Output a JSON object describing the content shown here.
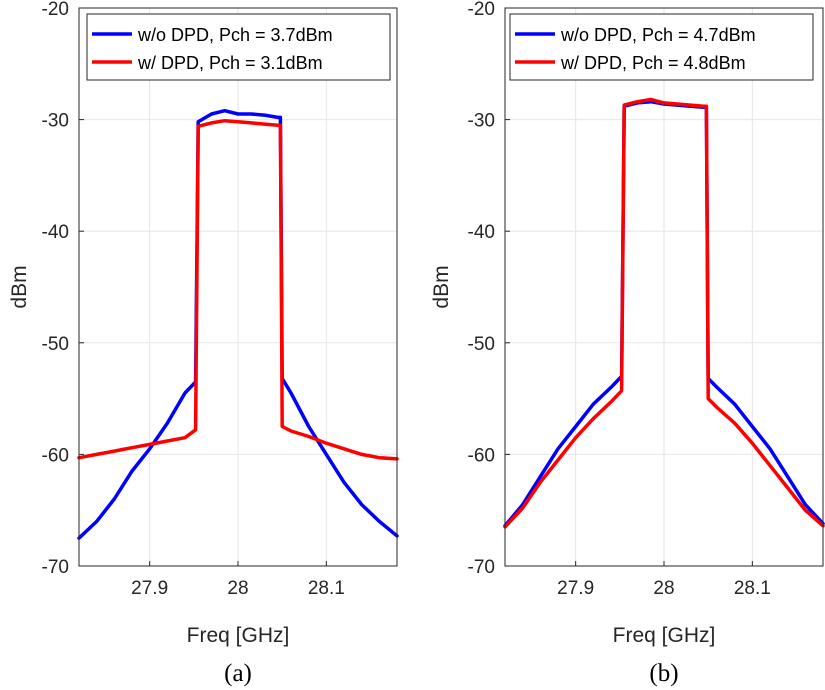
{
  "chart_data": [
    {
      "type": "line",
      "caption": "(a)",
      "xlabel": "Freq [GHz]",
      "ylabel": "dBm",
      "xlim": [
        27.82,
        28.18
      ],
      "ylim": [
        -70,
        -20
      ],
      "xticks": [
        27.9,
        28,
        28.1
      ],
      "xtick_labels": [
        "27.9",
        "28",
        "28.1"
      ],
      "yticks": [
        -70,
        -60,
        -50,
        -40,
        -30,
        -20
      ],
      "ytick_labels": [
        "-70",
        "-60",
        "-50",
        "-40",
        "-30",
        "-20"
      ],
      "grid": true,
      "legend_position": "top",
      "series": [
        {
          "name": "w/o DPD, Pch = 3.7dBm",
          "color": "#0000ff",
          "x": [
            27.82,
            27.84,
            27.86,
            27.88,
            27.9,
            27.92,
            27.94,
            27.952,
            27.955,
            27.97,
            27.985,
            28.0,
            28.015,
            28.03,
            28.045,
            28.048,
            28.05,
            28.06,
            28.08,
            28.1,
            28.12,
            28.14,
            28.16,
            28.18
          ],
          "y": [
            -67.5,
            -66,
            -64,
            -61.5,
            -59.5,
            -57.2,
            -54.5,
            -53.5,
            -30.2,
            -29.5,
            -29.2,
            -29.5,
            -29.5,
            -29.6,
            -29.8,
            -29.8,
            -53.2,
            -54.5,
            -57.5,
            -60,
            -62.5,
            -64.5,
            -66,
            -67.3
          ]
        },
        {
          "name": "w/ DPD, Pch = 3.1dBm",
          "color": "#ff0000",
          "x": [
            27.82,
            27.84,
            27.86,
            27.88,
            27.9,
            27.92,
            27.94,
            27.952,
            27.955,
            27.97,
            27.985,
            28.0,
            28.015,
            28.03,
            28.045,
            28.048,
            28.05,
            28.06,
            28.08,
            28.1,
            28.12,
            28.14,
            28.16,
            28.18
          ],
          "y": [
            -60.3,
            -60,
            -59.7,
            -59.4,
            -59.1,
            -58.8,
            -58.5,
            -57.8,
            -30.6,
            -30.3,
            -30.1,
            -30.2,
            -30.3,
            -30.4,
            -30.5,
            -30.5,
            -57.5,
            -57.9,
            -58.4,
            -59,
            -59.5,
            -60,
            -60.3,
            -60.4
          ]
        }
      ]
    },
    {
      "type": "line",
      "caption": "(b)",
      "xlabel": "Freq [GHz]",
      "ylabel": "dBm",
      "xlim": [
        27.82,
        28.18
      ],
      "ylim": [
        -70,
        -20
      ],
      "xticks": [
        27.9,
        28,
        28.1
      ],
      "xtick_labels": [
        "27.9",
        "28",
        "28.1"
      ],
      "yticks": [
        -70,
        -60,
        -50,
        -40,
        -30,
        -20
      ],
      "ytick_labels": [
        "-70",
        "-60",
        "-50",
        "-40",
        "-30",
        "-20"
      ],
      "grid": true,
      "legend_position": "top",
      "series": [
        {
          "name": "w/o DPD, Pch = 4.7dBm",
          "color": "#0000ff",
          "x": [
            27.82,
            27.84,
            27.86,
            27.88,
            27.9,
            27.92,
            27.94,
            27.952,
            27.955,
            27.97,
            27.985,
            28.0,
            28.015,
            28.03,
            28.045,
            28.048,
            28.05,
            28.06,
            28.08,
            28.1,
            28.12,
            28.14,
            28.16,
            28.18
          ],
          "y": [
            -66.4,
            -64.5,
            -62,
            -59.5,
            -57.5,
            -55.5,
            -54,
            -53,
            -28.8,
            -28.5,
            -28.4,
            -28.6,
            -28.7,
            -28.8,
            -28.9,
            -28.9,
            -53.2,
            -54,
            -55.5,
            -57.5,
            -59.5,
            -62,
            -64.5,
            -66.2
          ]
        },
        {
          "name": "w/ DPD, Pch = 4.8dBm",
          "color": "#ff0000",
          "x": [
            27.82,
            27.84,
            27.86,
            27.88,
            27.9,
            27.92,
            27.94,
            27.952,
            27.955,
            27.97,
            27.985,
            28.0,
            28.015,
            28.03,
            28.045,
            28.048,
            28.05,
            28.06,
            28.08,
            28.1,
            28.12,
            28.14,
            28.16,
            28.18
          ],
          "y": [
            -66.5,
            -64.8,
            -62.5,
            -60.5,
            -58.5,
            -56.8,
            -55.3,
            -54.3,
            -28.7,
            -28.4,
            -28.2,
            -28.5,
            -28.6,
            -28.7,
            -28.8,
            -28.8,
            -55,
            -55.8,
            -57.2,
            -59,
            -61,
            -63,
            -65,
            -66.4
          ]
        }
      ]
    }
  ]
}
